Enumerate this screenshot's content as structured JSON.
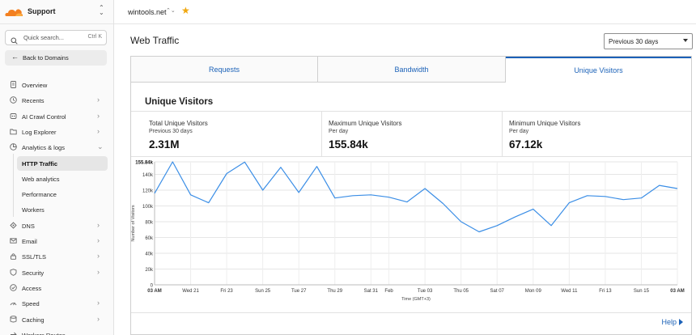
{
  "account": {
    "name": "Support"
  },
  "search": {
    "placeholder": "Quick search...",
    "shortcut": "Ctrl K"
  },
  "back_label": "Back to Domains",
  "nav": [
    {
      "label": "Overview",
      "icon": "document-icon",
      "chevron": false
    },
    {
      "label": "Recents",
      "icon": "clock-icon",
      "chevron": true
    },
    {
      "label": "AI Crawl Control",
      "icon": "crawl-icon",
      "chevron": true
    },
    {
      "label": "Log Explorer",
      "icon": "folder-icon",
      "chevron": true
    },
    {
      "label": "Analytics & logs",
      "icon": "analytics-icon",
      "chevron": true,
      "expanded": true
    }
  ],
  "nav_sub": [
    {
      "label": "HTTP Traffic",
      "active": true
    },
    {
      "label": "Web analytics",
      "active": false
    },
    {
      "label": "Performance",
      "active": false
    },
    {
      "label": "Workers",
      "active": false
    }
  ],
  "nav_after": [
    {
      "label": "DNS",
      "icon": "dns-icon",
      "chevron": true
    },
    {
      "label": "Email",
      "icon": "email-icon",
      "chevron": true
    },
    {
      "label": "SSL/TLS",
      "icon": "lock-icon",
      "chevron": true
    },
    {
      "label": "Security",
      "icon": "shield-icon",
      "chevron": true
    },
    {
      "label": "Access",
      "icon": "access-icon",
      "chevron": false
    },
    {
      "label": "Speed",
      "icon": "speed-icon",
      "chevron": true
    },
    {
      "label": "Caching",
      "icon": "caching-icon",
      "chevron": true
    },
    {
      "label": "Workers Routes",
      "icon": "workers-routes-icon",
      "chevron": false
    }
  ],
  "topbar": {
    "domain": "wintools.net"
  },
  "page": {
    "title": "Web Traffic",
    "range": "Previous 30 days"
  },
  "tabs": [
    {
      "label": "Requests",
      "active": false
    },
    {
      "label": "Bandwidth",
      "active": false
    },
    {
      "label": "Unique Visitors",
      "active": true
    }
  ],
  "section_title": "Unique Visitors",
  "stats": [
    {
      "heading": "Total Unique Visitors",
      "sub": "Previous 30 days",
      "value": "2.31M"
    },
    {
      "heading": "Maximum Unique Visitors",
      "sub": "Per day",
      "value": "155.84k"
    },
    {
      "heading": "Minimum Unique Visitors",
      "sub": "Per day",
      "value": "67.12k"
    }
  ],
  "help_label": "Help",
  "colors": {
    "accent": "#1c62b8",
    "line": "#3b8ee6",
    "star": "#f0a70f",
    "brand": "#f38020"
  },
  "chart_data": {
    "type": "line",
    "ylabel": "Number of Visitors",
    "xlabel": "Time (GMT+3)",
    "ylim": [
      0,
      155840
    ],
    "y_ticks": [
      "0",
      "20k",
      "40k",
      "60k",
      "80k",
      "100k",
      "120k",
      "140k"
    ],
    "y_max_label": "155.84k",
    "x_ticks": [
      {
        "label": "03 AM",
        "bold": true,
        "i": 0
      },
      {
        "label": "Wed 21",
        "bold": false,
        "i": 2
      },
      {
        "label": "Fri 23",
        "bold": false,
        "i": 4
      },
      {
        "label": "Sun 25",
        "bold": false,
        "i": 6
      },
      {
        "label": "Tue 27",
        "bold": false,
        "i": 8
      },
      {
        "label": "Thu 29",
        "bold": false,
        "i": 10
      },
      {
        "label": "Sat 31",
        "bold": false,
        "i": 12
      },
      {
        "label": "Feb",
        "bold": false,
        "i": 13
      },
      {
        "label": "Tue 03",
        "bold": false,
        "i": 15
      },
      {
        "label": "Thu 05",
        "bold": false,
        "i": 17
      },
      {
        "label": "Sat 07",
        "bold": false,
        "i": 19
      },
      {
        "label": "Mon 09",
        "bold": false,
        "i": 21
      },
      {
        "label": "Wed 11",
        "bold": false,
        "i": 23
      },
      {
        "label": "Fri 13",
        "bold": false,
        "i": 25
      },
      {
        "label": "Sun 15",
        "bold": false,
        "i": 27
      },
      {
        "label": "03 AM",
        "bold": true,
        "i": 29
      }
    ],
    "series": [
      {
        "values": [
          116000,
          155840,
          114000,
          104000,
          141000,
          155500,
          120000,
          149000,
          117000,
          150000,
          110000,
          113000,
          114000,
          111000,
          105000,
          122000,
          103000,
          80000,
          67120,
          75000,
          86000,
          96000,
          75000,
          104000,
          113000,
          112000,
          108000,
          110000,
          126000,
          122000
        ]
      }
    ]
  }
}
